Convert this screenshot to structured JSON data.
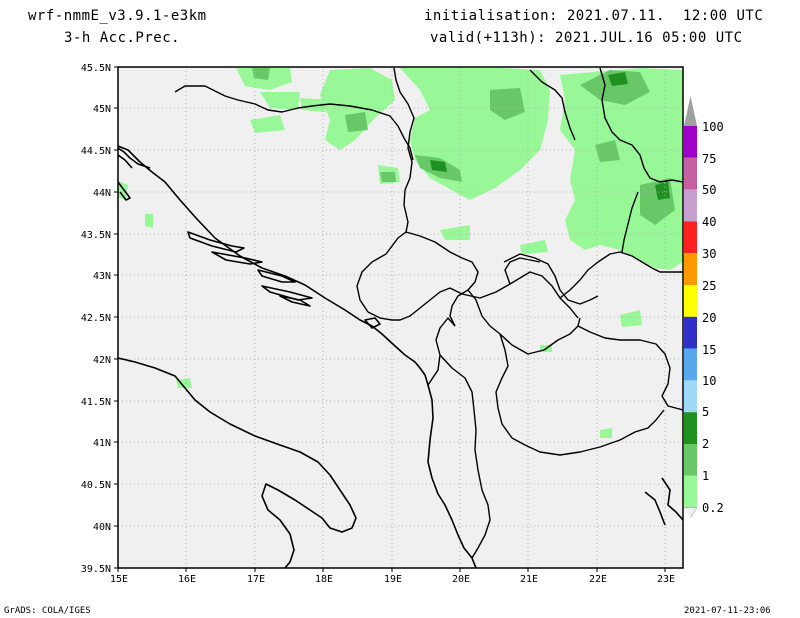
{
  "header": {
    "model": "wrf-nmmE_v3.9.1-e3km",
    "field": "3-h Acc.Prec.",
    "init": "initialisation: 2021.07.11.  12:00 UTC",
    "valid": "valid(+113h): 2021.JUL.16 05:00 UTC"
  },
  "axes": {
    "lon_labels": [
      "15E",
      "16E",
      "17E",
      "18E",
      "19E",
      "20E",
      "21E",
      "22E",
      "23E"
    ],
    "lat_labels": [
      "45.5N",
      "45N",
      "44.5N",
      "44N",
      "43.5N",
      "43N",
      "42.5N",
      "42N",
      "41.5N",
      "41N",
      "40.5N",
      "40N",
      "39.5N"
    ],
    "lon_range": [
      15.0,
      23.25
    ],
    "lat_range": [
      39.5,
      45.5
    ]
  },
  "legend": {
    "labels": [
      "100",
      "75",
      "50",
      "40",
      "30",
      "25",
      "20",
      "15",
      "10",
      "5",
      "2",
      "1",
      "0.2"
    ],
    "colors": [
      "#a0a0a0",
      "#a000c8",
      "#c85fa0",
      "#c8a0d0",
      "#ff2020",
      "#ff9900",
      "#ffff00",
      "#3030c8",
      "#58a8f0",
      "#a0d8f8",
      "#209020",
      "#68c868",
      "#98f898"
    ]
  },
  "footer": {
    "left": "GrADS: COLA/IGES",
    "right": "2021-07-11-23:06"
  }
}
